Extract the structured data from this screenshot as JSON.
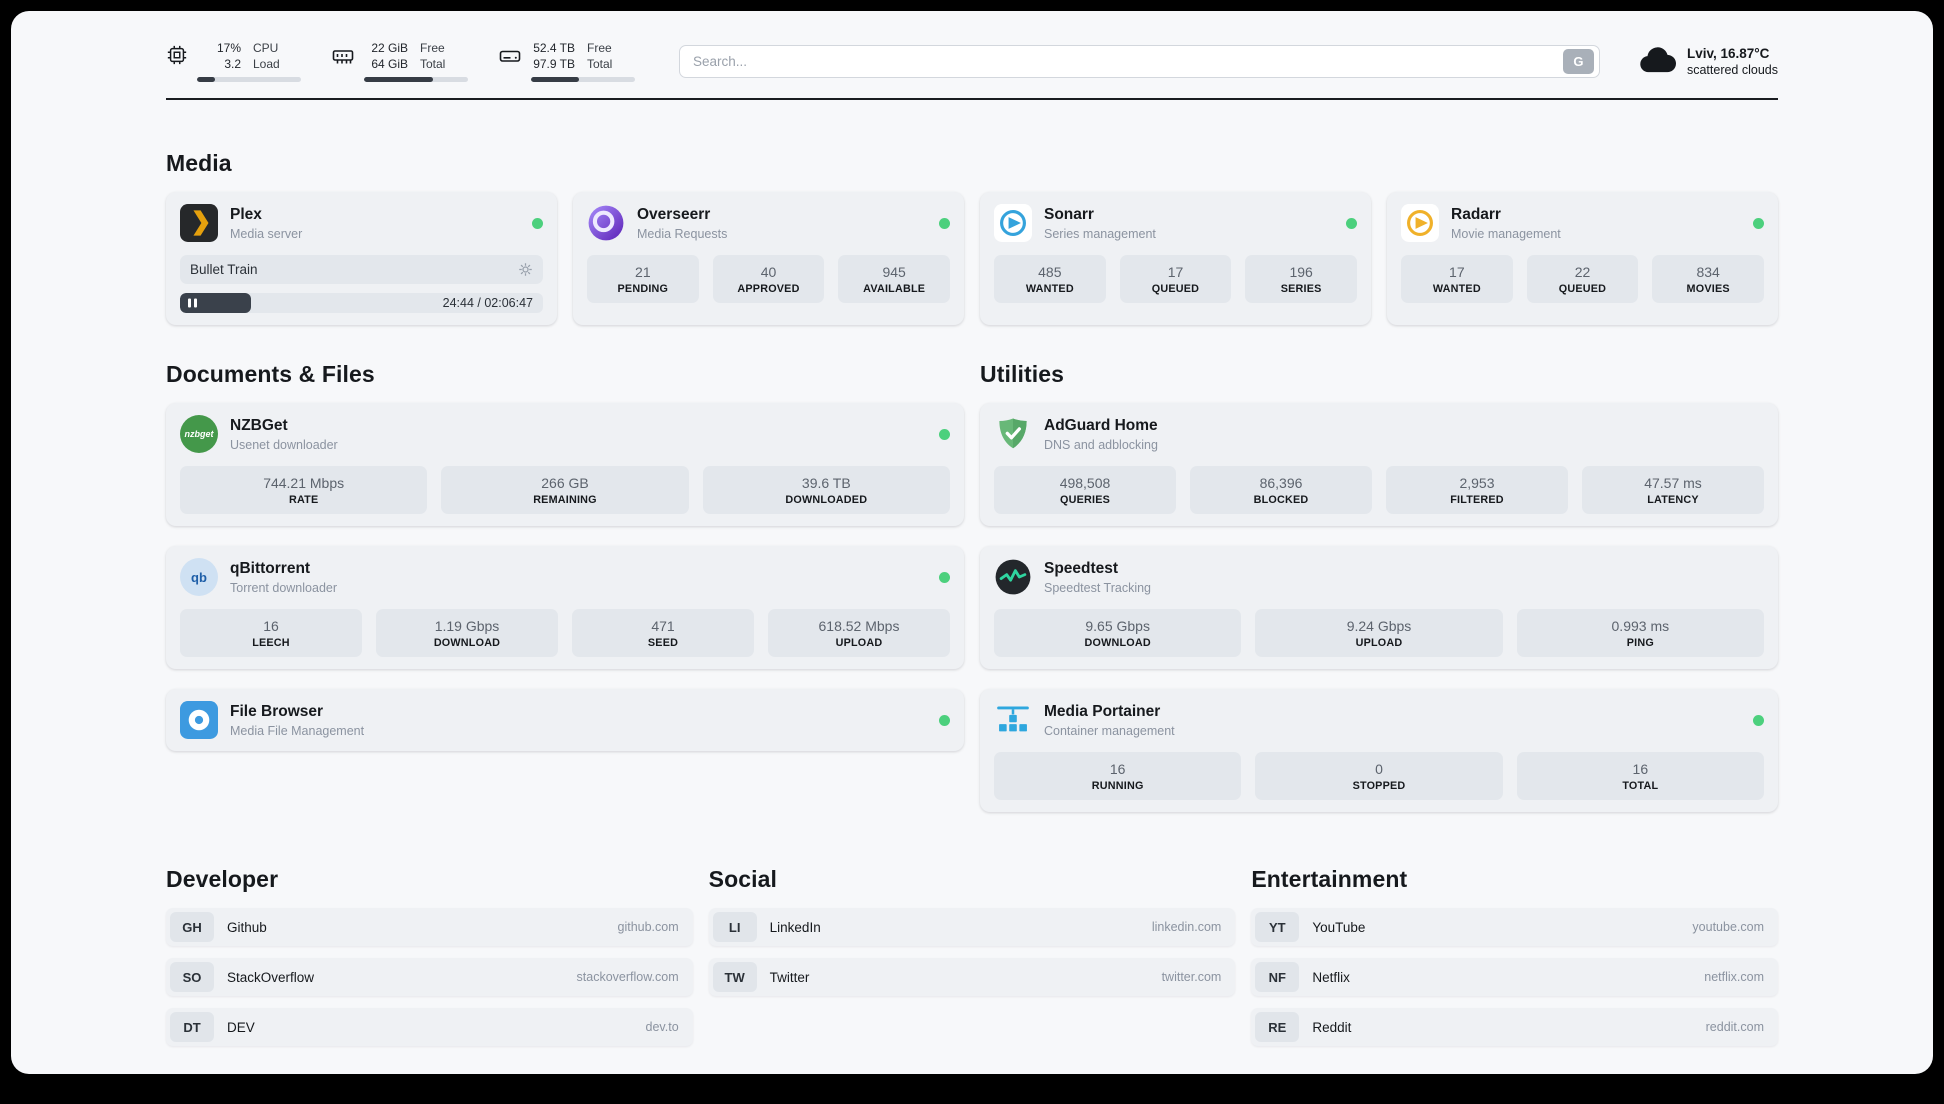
{
  "colors": {
    "status_online": "#4cd07d",
    "plex_accent": "#e5a00d",
    "sonarr_accent": "#35a3dc",
    "radarr_accent": "#f0b12a",
    "adguard_accent": "#68b878",
    "speedtest_accent": "#2fd6a0",
    "portainer_accent": "#2ea7de",
    "page_background": "#f7f8fa",
    "card_background": "#eff1f4",
    "stat_background": "#e3e7ec"
  },
  "topbar": {
    "cpu": {
      "value_top": "17%",
      "value_bottom": "3.2",
      "label_top": "CPU",
      "label_bottom": "Load",
      "progress_percent": 17
    },
    "memory": {
      "value_top": "22 GiB",
      "value_bottom": "64 GiB",
      "label_top": "Free",
      "label_bottom": "Total",
      "progress_percent": 66
    },
    "disk": {
      "value_top": "52.4 TB",
      "value_bottom": "97.9 TB",
      "label_top": "Free",
      "label_bottom": "Total",
      "progress_percent": 46
    },
    "search": {
      "placeholder": "Search...",
      "button_label": "G"
    },
    "weather": {
      "location": "Lviv, 16.87°C",
      "condition": "scattered clouds"
    }
  },
  "sections": {
    "media": {
      "title": "Media",
      "plex": {
        "name": "Plex",
        "subtitle": "Media server",
        "online": true,
        "player": {
          "title": "Bullet Train",
          "time": "24:44 / 02:06:47",
          "progress_percent": 19.5
        }
      },
      "overseerr": {
        "name": "Overseerr",
        "subtitle": "Media Requests",
        "online": true,
        "stats": [
          {
            "value": "21",
            "label": "PENDING"
          },
          {
            "value": "40",
            "label": "APPROVED"
          },
          {
            "value": "945",
            "label": "AVAILABLE"
          }
        ]
      },
      "sonarr": {
        "name": "Sonarr",
        "subtitle": "Series management",
        "online": true,
        "stats": [
          {
            "value": "485",
            "label": "WANTED"
          },
          {
            "value": "17",
            "label": "QUEUED"
          },
          {
            "value": "196",
            "label": "SERIES"
          }
        ]
      },
      "radarr": {
        "name": "Radarr",
        "subtitle": "Movie management",
        "online": true,
        "stats": [
          {
            "value": "17",
            "label": "WANTED"
          },
          {
            "value": "22",
            "label": "QUEUED"
          },
          {
            "value": "834",
            "label": "MOVIES"
          }
        ]
      }
    },
    "documents": {
      "title": "Documents & Files",
      "nzbget": {
        "name": "NZBGet",
        "subtitle": "Usenet downloader",
        "online": true,
        "icon_text": "nzbget",
        "stats": [
          {
            "value": "744.21 Mbps",
            "label": "RATE"
          },
          {
            "value": "266 GB",
            "label": "REMAINING"
          },
          {
            "value": "39.6 TB",
            "label": "DOWNLOADED"
          }
        ]
      },
      "qbittorrent": {
        "name": "qBittorrent",
        "subtitle": "Torrent downloader",
        "online": true,
        "icon_text": "qb",
        "stats": [
          {
            "value": "16",
            "label": "LEECH"
          },
          {
            "value": "1.19 Gbps",
            "label": "DOWNLOAD"
          },
          {
            "value": "471",
            "label": "SEED"
          },
          {
            "value": "618.52 Mbps",
            "label": "UPLOAD"
          }
        ]
      },
      "filebrowser": {
        "name": "File Browser",
        "subtitle": "Media File Management",
        "online": true
      }
    },
    "utilities": {
      "title": "Utilities",
      "adguard": {
        "name": "AdGuard Home",
        "subtitle": "DNS and adblocking",
        "stats": [
          {
            "value": "498,508",
            "label": "QUERIES"
          },
          {
            "value": "86,396",
            "label": "BLOCKED"
          },
          {
            "value": "2,953",
            "label": "FILTERED"
          },
          {
            "value": "47.57 ms",
            "label": "LATENCY"
          }
        ]
      },
      "speedtest": {
        "name": "Speedtest",
        "subtitle": "Speedtest Tracking",
        "stats": [
          {
            "value": "9.65 Gbps",
            "label": "DOWNLOAD"
          },
          {
            "value": "9.24 Gbps",
            "label": "UPLOAD"
          },
          {
            "value": "0.993 ms",
            "label": "PING"
          }
        ]
      },
      "portainer": {
        "name": "Media Portainer",
        "subtitle": "Container management",
        "online": true,
        "stats": [
          {
            "value": "16",
            "label": "RUNNING"
          },
          {
            "value": "0",
            "label": "STOPPED"
          },
          {
            "value": "16",
            "label": "TOTAL"
          }
        ]
      }
    },
    "bookmarks": [
      {
        "title": "Developer",
        "items": [
          {
            "abbr": "GH",
            "name": "Github",
            "url": "github.com"
          },
          {
            "abbr": "SO",
            "name": "StackOverflow",
            "url": "stackoverflow.com"
          },
          {
            "abbr": "DT",
            "name": "DEV",
            "url": "dev.to"
          }
        ]
      },
      {
        "title": "Social",
        "items": [
          {
            "abbr": "LI",
            "name": "LinkedIn",
            "url": "linkedin.com"
          },
          {
            "abbr": "TW",
            "name": "Twitter",
            "url": "twitter.com"
          }
        ]
      },
      {
        "title": "Entertainment",
        "items": [
          {
            "abbr": "YT",
            "name": "YouTube",
            "url": "youtube.com"
          },
          {
            "abbr": "NF",
            "name": "Netflix",
            "url": "netflix.com"
          },
          {
            "abbr": "RE",
            "name": "Reddit",
            "url": "reddit.com"
          }
        ]
      }
    ]
  }
}
